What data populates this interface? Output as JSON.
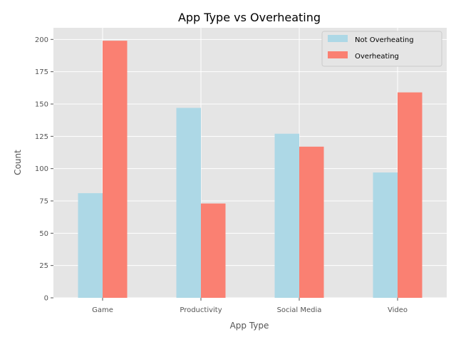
{
  "chart_data": {
    "type": "bar",
    "title": "App Type vs Overheating",
    "xlabel": "App Type",
    "ylabel": "Count",
    "categories": [
      "Game",
      "Productivity",
      "Social Media",
      "Video"
    ],
    "series": [
      {
        "name": "Not Overheating",
        "color": "#add8e6",
        "values": [
          81,
          147,
          127,
          97
        ]
      },
      {
        "name": "Overheating",
        "color": "#fa8072",
        "values": [
          199,
          73,
          117,
          159
        ]
      }
    ],
    "ylim": [
      0,
      209
    ],
    "yticks": [
      0,
      25,
      50,
      75,
      100,
      125,
      150,
      175,
      200
    ],
    "grid": true,
    "legend": "top-right",
    "background": "#e5e5e5"
  }
}
